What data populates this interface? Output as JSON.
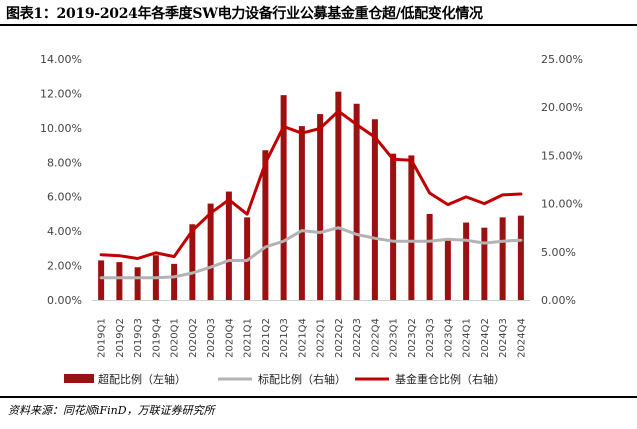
{
  "title": "图表1：2019-2024年各季度SW电力设备行业公募基金重仓超/低配变化情况",
  "source": "资料来源：同花顺iFinD，万联证券研究所",
  "colors": {
    "bar": "#9b1111",
    "standard_line": "#b3b3b3",
    "holding_line": "#c00000",
    "axis": "#cfcfcf"
  },
  "chart_data": {
    "type": "bar",
    "categories": [
      "2019Q1",
      "2019Q2",
      "2019Q3",
      "2019Q4",
      "2020Q1",
      "2020Q2",
      "2020Q3",
      "2020Q4",
      "2021Q1",
      "2021Q2",
      "2021Q3",
      "2021Q4",
      "2022Q1",
      "2022Q2",
      "2022Q3",
      "2022Q4",
      "2023Q1",
      "2023Q2",
      "2023Q3",
      "2023Q4",
      "2024Q1",
      "2024Q2",
      "2024Q3",
      "2024Q4"
    ],
    "left_axis": {
      "min": 0,
      "max": 14,
      "step": 2,
      "tick_labels": [
        "0.00%",
        "2.00%",
        "4.00%",
        "6.00%",
        "8.00%",
        "10.00%",
        "12.00%",
        "14.00%"
      ]
    },
    "right_axis": {
      "min": 0,
      "max": 25,
      "step": 5,
      "tick_labels": [
        "0.00%",
        "5.00%",
        "10.00%",
        "15.00%",
        "20.00%",
        "25.00%"
      ]
    },
    "series": [
      {
        "name": "超配比例（左轴）",
        "kind": "bar",
        "axis": "left",
        "values": [
          2.3,
          2.2,
          1.9,
          2.6,
          2.1,
          4.4,
          5.6,
          6.3,
          4.8,
          8.7,
          11.9,
          10.1,
          10.8,
          12.1,
          11.4,
          10.5,
          8.5,
          8.4,
          5.0,
          3.6,
          4.5,
          4.2,
          4.8,
          4.9
        ]
      },
      {
        "name": "标配比例（右轴）",
        "kind": "line",
        "axis": "right",
        "values": [
          2.3,
          2.3,
          2.3,
          2.3,
          2.4,
          2.8,
          3.4,
          4.1,
          4.1,
          5.5,
          6.1,
          7.2,
          7.0,
          7.5,
          6.8,
          6.4,
          6.1,
          6.1,
          6.1,
          6.3,
          6.2,
          5.9,
          6.1,
          6.2
        ]
      },
      {
        "name": "基金重仓比例（右轴）",
        "kind": "line",
        "axis": "right",
        "values": [
          4.7,
          4.6,
          4.3,
          4.9,
          4.5,
          7.2,
          9.0,
          10.4,
          8.9,
          14.2,
          18.0,
          17.3,
          17.8,
          19.6,
          18.2,
          16.9,
          14.6,
          14.5,
          11.1,
          9.9,
          10.7,
          10.0,
          10.9,
          11.0
        ]
      }
    ],
    "legend_position": "bottom",
    "grid": false
  }
}
